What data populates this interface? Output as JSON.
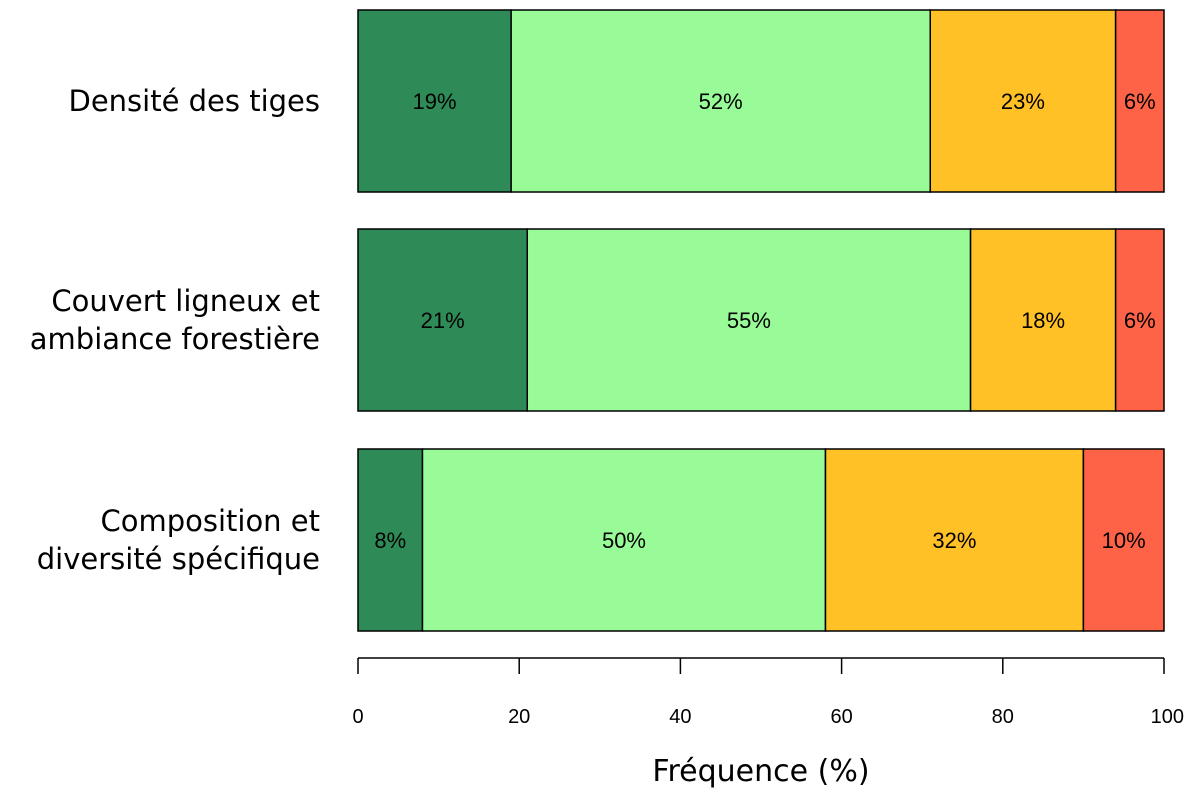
{
  "chart_data": {
    "type": "bar",
    "orientation": "horizontal",
    "stacked": true,
    "categories": [
      [
        "Densité des tiges"
      ],
      [
        "Couvert ligneux et",
        "ambiance forestière"
      ],
      [
        "Composition et",
        "diversité spécifique"
      ]
    ],
    "series": [
      {
        "values": [
          19,
          21,
          8
        ],
        "color": "#2E8B57"
      },
      {
        "values": [
          52,
          55,
          50
        ],
        "color": "#98FB98"
      },
      {
        "values": [
          23,
          18,
          32
        ],
        "color": "#FFC125"
      },
      {
        "values": [
          6,
          6,
          10
        ],
        "color": "#FF6347"
      }
    ],
    "xlabel": "Fréquence (%)",
    "xlim": [
      0,
      100
    ],
    "xticks": [
      0,
      20,
      40,
      60,
      80,
      100
    ],
    "tick_labels": [
      "0",
      "20",
      "40",
      "60",
      "80",
      "100"
    ],
    "grid": false,
    "legend": "none"
  }
}
